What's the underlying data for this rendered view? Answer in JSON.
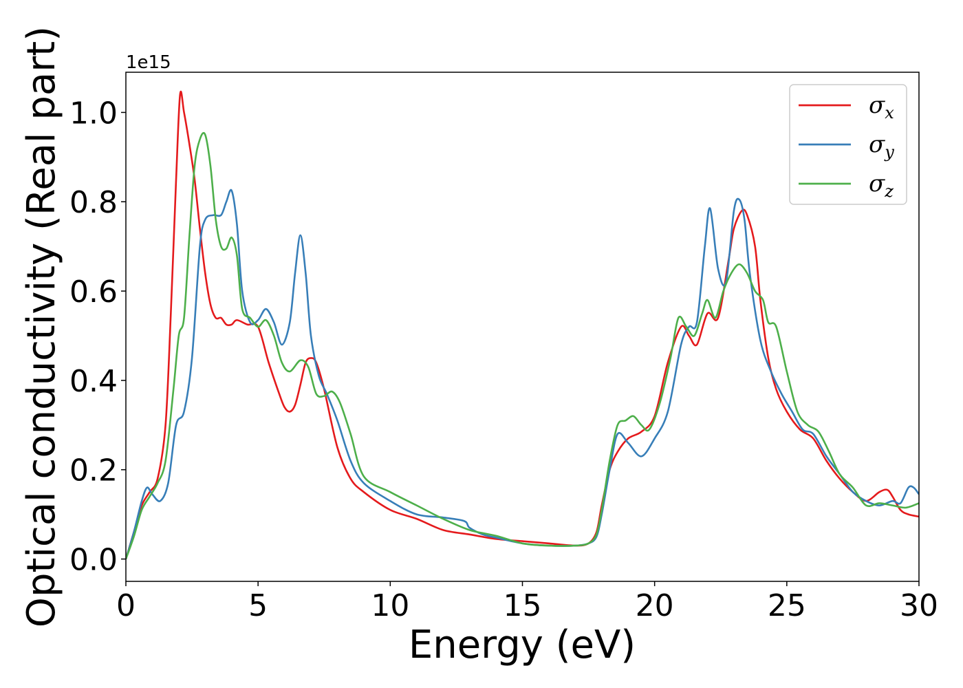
{
  "chart_data": {
    "type": "line",
    "title": "",
    "xlabel": "Energy (eV)",
    "ylabel": "Optical conductivity (Real part)",
    "y_offset_label": "1e15",
    "xlim": [
      0,
      30
    ],
    "ylim": [
      -0.05,
      1.09
    ],
    "xticks": [
      0,
      5,
      10,
      15,
      20,
      25,
      30
    ],
    "xtick_labels": [
      "0",
      "5",
      "10",
      "15",
      "20",
      "25",
      "30"
    ],
    "yticks": [
      0.0,
      0.2,
      0.4,
      0.6,
      0.8,
      1.0
    ],
    "ytick_labels": [
      "0.0",
      "0.2",
      "0.4",
      "0.6",
      "0.8",
      "1.0"
    ],
    "grid": false,
    "legend_position": "top-right",
    "series": [
      {
        "name": "σx",
        "symbol": "σ",
        "subscript": "x",
        "color": "#e41a1c",
        "x": [
          0,
          0.3,
          0.6,
          0.9,
          1.2,
          1.5,
          1.7,
          1.9,
          2.05,
          2.2,
          2.4,
          2.6,
          2.8,
          3.0,
          3.2,
          3.4,
          3.6,
          3.8,
          4.0,
          4.2,
          4.6,
          5.0,
          5.4,
          5.8,
          6.0,
          6.2,
          6.4,
          6.6,
          6.8,
          7.0,
          7.2,
          7.5,
          8.0,
          8.5,
          9.0,
          10.0,
          11.0,
          12.0,
          13.0,
          14.0,
          15.0,
          16.0,
          17.0,
          17.5,
          17.8,
          18.0,
          18.3,
          18.6,
          19.0,
          19.5,
          20.0,
          20.5,
          21.0,
          21.3,
          21.6,
          22.0,
          22.4,
          22.8,
          23.0,
          23.3,
          23.5,
          23.8,
          24.0,
          24.3,
          24.6,
          25.0,
          25.5,
          26.0,
          26.5,
          27.0,
          27.5,
          28.0,
          28.5,
          28.8,
          29.0,
          29.3,
          29.6,
          30.0
        ],
        "y": [
          0.0,
          0.06,
          0.12,
          0.15,
          0.18,
          0.3,
          0.55,
          0.85,
          1.04,
          1.0,
          0.93,
          0.85,
          0.74,
          0.64,
          0.57,
          0.54,
          0.54,
          0.525,
          0.525,
          0.535,
          0.525,
          0.52,
          0.44,
          0.37,
          0.34,
          0.33,
          0.345,
          0.39,
          0.44,
          0.45,
          0.44,
          0.38,
          0.25,
          0.18,
          0.15,
          0.11,
          0.09,
          0.065,
          0.055,
          0.045,
          0.04,
          0.035,
          0.03,
          0.035,
          0.06,
          0.12,
          0.2,
          0.24,
          0.27,
          0.285,
          0.32,
          0.44,
          0.52,
          0.5,
          0.48,
          0.55,
          0.54,
          0.67,
          0.74,
          0.78,
          0.77,
          0.7,
          0.58,
          0.45,
          0.38,
          0.33,
          0.29,
          0.27,
          0.22,
          0.18,
          0.15,
          0.13,
          0.15,
          0.155,
          0.14,
          0.11,
          0.1,
          0.095
        ]
      },
      {
        "name": "σy",
        "symbol": "σ",
        "subscript": "y",
        "color": "#377eb8",
        "x": [
          0,
          0.3,
          0.6,
          0.8,
          1.0,
          1.3,
          1.6,
          1.9,
          2.2,
          2.5,
          2.8,
          3.0,
          3.3,
          3.6,
          3.8,
          4.0,
          4.2,
          4.4,
          4.7,
          5.0,
          5.3,
          5.6,
          5.9,
          6.2,
          6.4,
          6.6,
          6.8,
          7.0,
          7.3,
          7.6,
          8.0,
          8.5,
          9.0,
          10.0,
          11.0,
          12.0,
          12.8,
          13.0,
          13.5,
          14.0,
          15.0,
          16.0,
          17.0,
          17.5,
          17.8,
          18.0,
          18.3,
          18.6,
          19.0,
          19.5,
          20.0,
          20.5,
          21.0,
          21.3,
          21.6,
          21.9,
          22.1,
          22.4,
          22.7,
          23.0,
          23.2,
          23.4,
          23.6,
          24.0,
          24.4,
          24.8,
          25.2,
          25.6,
          26.0,
          26.5,
          27.0,
          27.5,
          28.0,
          28.5,
          29.0,
          29.3,
          29.6,
          29.8,
          30.0
        ],
        "y": [
          0.0,
          0.06,
          0.13,
          0.16,
          0.145,
          0.13,
          0.17,
          0.3,
          0.33,
          0.45,
          0.7,
          0.76,
          0.77,
          0.77,
          0.8,
          0.825,
          0.75,
          0.6,
          0.53,
          0.535,
          0.56,
          0.53,
          0.48,
          0.53,
          0.64,
          0.725,
          0.64,
          0.5,
          0.41,
          0.37,
          0.31,
          0.22,
          0.17,
          0.13,
          0.1,
          0.093,
          0.085,
          0.07,
          0.055,
          0.048,
          0.035,
          0.03,
          0.03,
          0.035,
          0.05,
          0.1,
          0.2,
          0.28,
          0.26,
          0.23,
          0.27,
          0.33,
          0.48,
          0.52,
          0.53,
          0.7,
          0.785,
          0.65,
          0.62,
          0.78,
          0.805,
          0.76,
          0.64,
          0.49,
          0.42,
          0.37,
          0.33,
          0.29,
          0.28,
          0.23,
          0.19,
          0.15,
          0.13,
          0.12,
          0.13,
          0.125,
          0.16,
          0.16,
          0.145
        ]
      },
      {
        "name": "σz",
        "symbol": "σ",
        "subscript": "z",
        "color": "#4daf4a",
        "x": [
          0,
          0.3,
          0.6,
          0.9,
          1.2,
          1.5,
          1.8,
          2.0,
          2.2,
          2.4,
          2.6,
          2.8,
          3.0,
          3.2,
          3.4,
          3.6,
          3.8,
          4.0,
          4.2,
          4.4,
          4.7,
          5.0,
          5.3,
          5.6,
          5.9,
          6.2,
          6.6,
          6.9,
          7.2,
          7.5,
          7.8,
          8.1,
          8.5,
          9.0,
          10.0,
          11.0,
          12.0,
          13.0,
          14.0,
          15.0,
          16.0,
          17.0,
          17.5,
          17.8,
          18.0,
          18.3,
          18.6,
          18.9,
          19.2,
          19.5,
          19.8,
          20.2,
          20.6,
          20.9,
          21.2,
          21.5,
          21.8,
          22.0,
          22.3,
          22.6,
          22.9,
          23.2,
          23.5,
          23.8,
          24.1,
          24.3,
          24.6,
          25.0,
          25.4,
          25.8,
          26.2,
          26.6,
          27.0,
          27.5,
          28.0,
          28.5,
          29.0,
          29.5,
          30.0
        ],
        "y": [
          0.0,
          0.05,
          0.11,
          0.14,
          0.17,
          0.22,
          0.38,
          0.5,
          0.54,
          0.72,
          0.88,
          0.94,
          0.95,
          0.88,
          0.76,
          0.7,
          0.695,
          0.72,
          0.68,
          0.56,
          0.54,
          0.52,
          0.535,
          0.5,
          0.44,
          0.42,
          0.445,
          0.43,
          0.37,
          0.365,
          0.375,
          0.35,
          0.28,
          0.185,
          0.15,
          0.12,
          0.09,
          0.065,
          0.052,
          0.035,
          0.03,
          0.03,
          0.035,
          0.055,
          0.11,
          0.22,
          0.3,
          0.31,
          0.32,
          0.3,
          0.29,
          0.35,
          0.45,
          0.54,
          0.52,
          0.5,
          0.55,
          0.58,
          0.54,
          0.6,
          0.64,
          0.66,
          0.64,
          0.6,
          0.58,
          0.53,
          0.52,
          0.42,
          0.33,
          0.3,
          0.285,
          0.24,
          0.19,
          0.16,
          0.12,
          0.125,
          0.12,
          0.115,
          0.125
        ]
      }
    ]
  }
}
